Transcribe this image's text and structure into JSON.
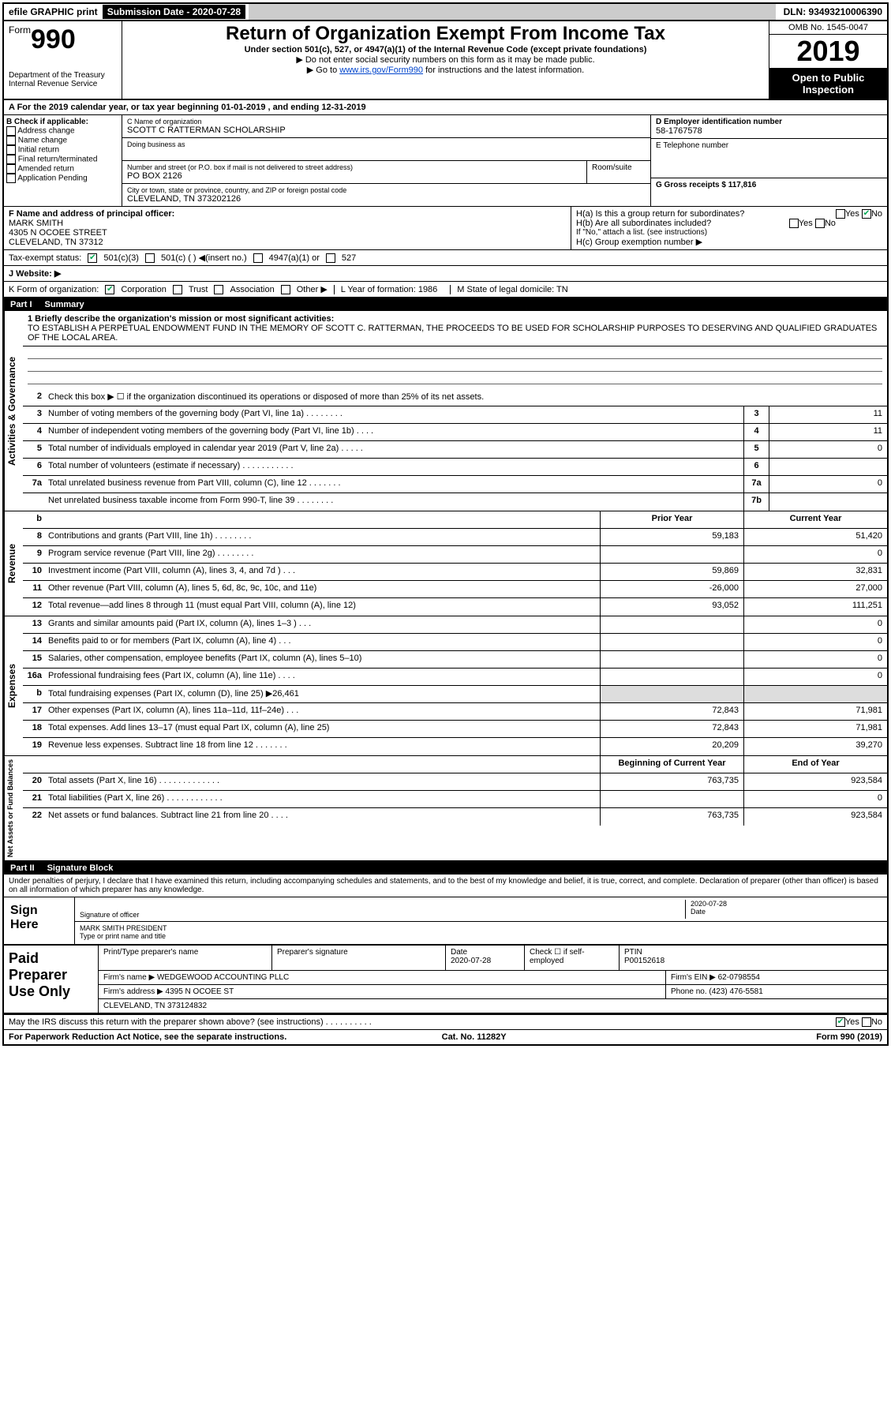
{
  "topbar": {
    "efile": "efile GRAPHIC print",
    "sub_label": "Submission Date - 2020-07-28",
    "dln": "DLN: 93493210006390"
  },
  "header": {
    "form_word": "Form",
    "form_num": "990",
    "dept": "Department of the Treasury",
    "irs": "Internal Revenue Service",
    "title": "Return of Organization Exempt From Income Tax",
    "sub": "Under section 501(c), 527, or 4947(a)(1) of the Internal Revenue Code (except private foundations)",
    "note1": "▶ Do not enter social security numbers on this form as it may be made public.",
    "note2_a": "▶ Go to ",
    "note2_link": "www.irs.gov/Form990",
    "note2_b": " for instructions and the latest information.",
    "omb": "OMB No. 1545-0047",
    "year": "2019",
    "open": "Open to Public Inspection"
  },
  "row_a": "A For the 2019 calendar year, or tax year beginning 01-01-2019    , and ending 12-31-2019",
  "col_b": {
    "title": "B Check if applicable:",
    "items": [
      "Address change",
      "Name change",
      "Initial return",
      "Final return/terminated",
      "Amended return",
      "Application Pending"
    ]
  },
  "col_c": {
    "name_lbl": "C Name of organization",
    "name": "SCOTT C RATTERMAN SCHOLARSHIP",
    "dba_lbl": "Doing business as",
    "addr_lbl": "Number and street (or P.O. box if mail is not delivered to street address)",
    "addr": "PO BOX 2126",
    "room_lbl": "Room/suite",
    "city_lbl": "City or town, state or province, country, and ZIP or foreign postal code",
    "city": "CLEVELAND, TN  373202126"
  },
  "col_d": {
    "lbl": "D Employer identification number",
    "val": "58-1767578"
  },
  "col_e": {
    "lbl": "E Telephone number"
  },
  "col_g": {
    "lbl": "G Gross receipts $ 117,816"
  },
  "row_f": {
    "lbl": "F  Name and address of principal officer:",
    "name": "MARK SMITH",
    "addr1": "4305 N OCOEE STREET",
    "addr2": "CLEVELAND, TN  37312"
  },
  "row_h": {
    "ha": "H(a)  Is this a group return for subordinates?",
    "hb": "H(b)  Are all subordinates included?",
    "hb_note": "If \"No,\" attach a list. (see instructions)",
    "hc": "H(c)  Group exemption number ▶",
    "yes": "Yes",
    "no": "No"
  },
  "tax_row": {
    "lbl": "Tax-exempt status:",
    "o1": "501(c)(3)",
    "o2": "501(c) (  ) ◀(insert no.)",
    "o3": "4947(a)(1) or",
    "o4": "527"
  },
  "web_row": {
    "lbl": "J   Website: ▶"
  },
  "k_row": {
    "lbl": "K Form of organization:",
    "o1": "Corporation",
    "o2": "Trust",
    "o3": "Association",
    "o4": "Other ▶",
    "l": "L Year of formation: 1986",
    "m": "M State of legal domicile: TN"
  },
  "part1": {
    "num": "Part I",
    "title": "Summary"
  },
  "mission": {
    "lbl": "1  Briefly describe the organization's mission or most significant activities:",
    "text": "TO ESTABLISH A PERPETUAL ENDOWMENT FUND IN THE MEMORY OF SCOTT C. RATTERMAN, THE PROCEEDS TO BE USED FOR SCHOLARSHIP PURPOSES TO DESERVING AND QUALIFIED GRADUATES OF THE LOCAL AREA."
  },
  "gov_lines": [
    {
      "n": "2",
      "t": "Check this box ▶ ☐  if the organization discontinued its operations or disposed of more than 25% of its net assets."
    },
    {
      "n": "3",
      "t": "Number of voting members of the governing body (Part VI, line 1a)  .   .   .   .   .   .   .   .",
      "b": "3",
      "v": "11"
    },
    {
      "n": "4",
      "t": "Number of independent voting members of the governing body (Part VI, line 1b)  .   .   .   .",
      "b": "4",
      "v": "11"
    },
    {
      "n": "5",
      "t": "Total number of individuals employed in calendar year 2019 (Part V, line 2a)  .   .   .   .   .",
      "b": "5",
      "v": "0"
    },
    {
      "n": "6",
      "t": "Total number of volunteers (estimate if necessary)   .   .   .   .   .   .   .   .   .   .   .",
      "b": "6",
      "v": ""
    },
    {
      "n": "7a",
      "t": "Total unrelated business revenue from Part VIII, column (C), line 12  .   .   .   .   .   .   .",
      "b": "7a",
      "v": "0"
    },
    {
      "n": "",
      "t": "Net unrelated business taxable income from Form 990-T, line 39   .   .   .   .   .   .   .   .",
      "b": "7b",
      "v": ""
    }
  ],
  "pycy_hdr": {
    "py": "Prior Year",
    "cy": "Current Year"
  },
  "rev_lines": [
    {
      "n": "8",
      "t": "Contributions and grants (Part VIII, line 1h)   .   .   .   .   .   .   .   .",
      "py": "59,183",
      "cy": "51,420"
    },
    {
      "n": "9",
      "t": "Program service revenue (Part VIII, line 2g)   .   .   .   .   .   .   .   .",
      "py": "",
      "cy": "0"
    },
    {
      "n": "10",
      "t": "Investment income (Part VIII, column (A), lines 3, 4, and 7d )   .   .   .",
      "py": "59,869",
      "cy": "32,831"
    },
    {
      "n": "11",
      "t": "Other revenue (Part VIII, column (A), lines 5, 6d, 8c, 9c, 10c, and 11e)",
      "py": "-26,000",
      "cy": "27,000"
    },
    {
      "n": "12",
      "t": "Total revenue—add lines 8 through 11 (must equal Part VIII, column (A), line 12)",
      "py": "93,052",
      "cy": "111,251"
    }
  ],
  "exp_lines": [
    {
      "n": "13",
      "t": "Grants and similar amounts paid (Part IX, column (A), lines 1–3 )  .   .   .",
      "py": "",
      "cy": "0"
    },
    {
      "n": "14",
      "t": "Benefits paid to or for members (Part IX, column (A), line 4)   .   .   .",
      "py": "",
      "cy": "0"
    },
    {
      "n": "15",
      "t": "Salaries, other compensation, employee benefits (Part IX, column (A), lines 5–10)",
      "py": "",
      "cy": "0"
    },
    {
      "n": "16a",
      "t": "Professional fundraising fees (Part IX, column (A), line 11e)   .   .   .   .",
      "py": "",
      "cy": "0"
    },
    {
      "n": "b",
      "t": "Total fundraising expenses (Part IX, column (D), line 25) ▶26,461",
      "shaded": true
    },
    {
      "n": "17",
      "t": "Other expenses (Part IX, column (A), lines 11a–11d, 11f–24e)   .   .   .",
      "py": "72,843",
      "cy": "71,981"
    },
    {
      "n": "18",
      "t": "Total expenses. Add lines 13–17 (must equal Part IX, column (A), line 25)",
      "py": "72,843",
      "cy": "71,981"
    },
    {
      "n": "19",
      "t": "Revenue less expenses. Subtract line 18 from line 12  .   .   .   .   .   .   .",
      "py": "20,209",
      "cy": "39,270"
    }
  ],
  "na_hdr": {
    "py": "Beginning of Current Year",
    "cy": "End of Year"
  },
  "na_lines": [
    {
      "n": "20",
      "t": "Total assets (Part X, line 16)  .   .   .   .   .   .   .   .   .   .   .   .   .",
      "py": "763,735",
      "cy": "923,584"
    },
    {
      "n": "21",
      "t": "Total liabilities (Part X, line 26)  .   .   .   .   .   .   .   .   .   .   .   .",
      "py": "",
      "cy": "0"
    },
    {
      "n": "22",
      "t": "Net assets or fund balances. Subtract line 21 from line 20   .   .   .   .",
      "py": "763,735",
      "cy": "923,584"
    }
  ],
  "vstrips": {
    "gov": "Activities & Governance",
    "rev": "Revenue",
    "exp": "Expenses",
    "na": "Net Assets or Fund Balances"
  },
  "part2": {
    "num": "Part II",
    "title": "Signature Block"
  },
  "sig": {
    "intro": "Under penalties of perjury, I declare that I have examined this return, including accompanying schedules and statements, and to the best of my knowledge and belief, it is true, correct, and complete. Declaration of preparer (other than officer) is based on all information of which preparer has any knowledge.",
    "sign_here": "Sign Here",
    "sig_of": "Signature of officer",
    "date_lbl": "Date",
    "date": "2020-07-28",
    "name": "MARK SMITH  PRESIDENT",
    "name_lbl": "Type or print name and title"
  },
  "prep": {
    "title": "Paid Preparer Use Only",
    "pt_name_lbl": "Print/Type preparer's name",
    "sig_lbl": "Preparer's signature",
    "date_lbl": "Date",
    "date": "2020-07-28",
    "check_lbl": "Check ☐ if self-employed",
    "ptin_lbl": "PTIN",
    "ptin": "P00152618",
    "firm_name_lbl": "Firm's name     ▶",
    "firm_name": "WEDGEWOOD ACCOUNTING PLLC",
    "firm_ein_lbl": "Firm's EIN ▶",
    "firm_ein": "62-0798554",
    "firm_addr_lbl": "Firm's address ▶",
    "firm_addr1": "4395 N OCOEE ST",
    "firm_addr2": "CLEVELAND, TN  373124832",
    "phone_lbl": "Phone no.",
    "phone": "(423) 476-5581"
  },
  "discuss": {
    "q": "May the IRS discuss this return with the preparer shown above? (see instructions)   .   .   .   .   .   .   .   .   .   .",
    "yes": "Yes",
    "no": "No"
  },
  "footer": {
    "l": "For Paperwork Reduction Act Notice, see the separate instructions.",
    "m": "Cat. No. 11282Y",
    "r": "Form 990 (2019)"
  }
}
